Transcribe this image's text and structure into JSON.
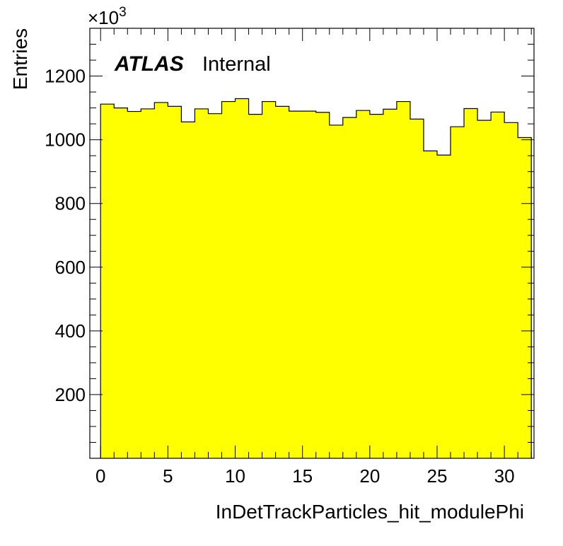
{
  "chart_data": {
    "type": "bar",
    "histogram": true,
    "bin_width": 1,
    "x_start": 0,
    "values": [
      1112,
      1100,
      1089,
      1097,
      1117,
      1105,
      1056,
      1097,
      1082,
      1120,
      1129,
      1080,
      1120,
      1105,
      1090,
      1090,
      1086,
      1046,
      1070,
      1092,
      1080,
      1096,
      1120,
      1065,
      965,
      952,
      1041,
      1098,
      1061,
      1087,
      1054,
      1007
    ],
    "xlabel": "InDetTrackParticles_hit_modulePhi",
    "ylabel": "Entries",
    "y_multiplier": "×10",
    "y_multiplier_exp": "3",
    "xlim": [
      -0.8,
      32.2
    ],
    "ylim": [
      0,
      1350
    ],
    "x_ticks": [
      0,
      5,
      10,
      15,
      20,
      25,
      30
    ],
    "y_ticks": [
      200,
      400,
      600,
      800,
      1000,
      1200
    ],
    "fill_color": "#ffff00",
    "line_color": "#000000",
    "grid": false,
    "legend": "none",
    "annotation": {
      "logo": "ATLAS",
      "status": "Internal"
    }
  }
}
